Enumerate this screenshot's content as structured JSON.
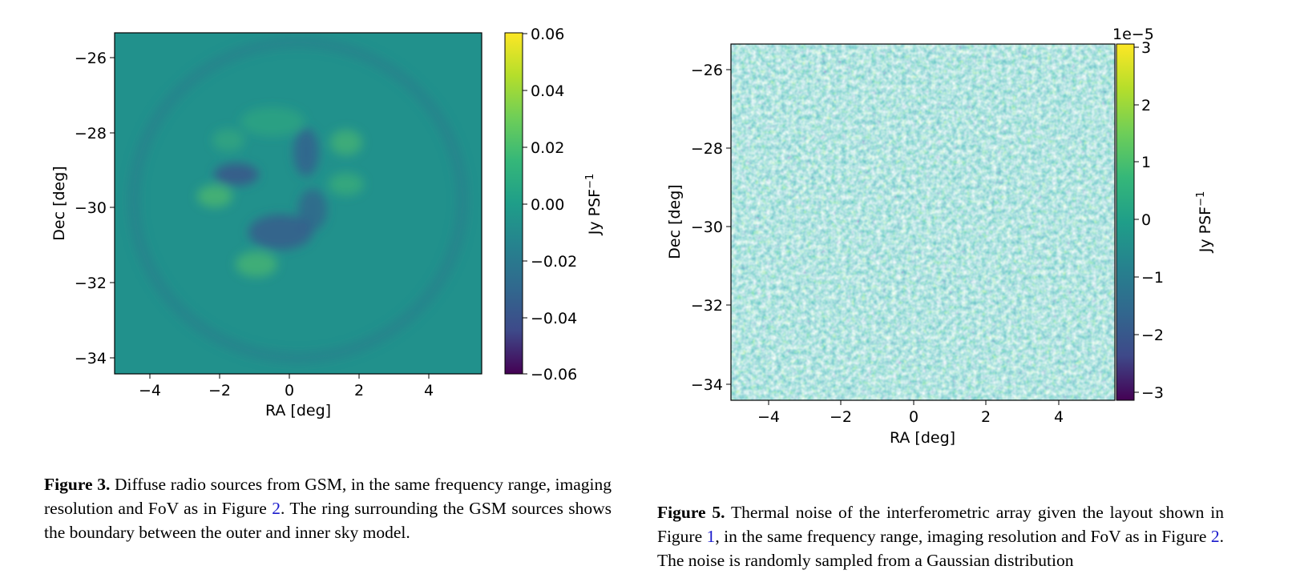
{
  "figures": [
    {
      "id": "fig3",
      "xlabel": "RA [deg]",
      "ylabel": "Dec [deg]",
      "cbar_label": "Jy PSF",
      "cbar_label_exp": "−1",
      "cbar_offset": "",
      "xticks": [
        "−4",
        "−2",
        "0",
        "2",
        "4"
      ],
      "yticks": [
        "−26",
        "−28",
        "−30",
        "−32",
        "−34"
      ],
      "cbar_ticks": [
        "0.06",
        "0.04",
        "0.02",
        "0.00",
        "−0.02",
        "−0.04",
        "−0.06"
      ]
    },
    {
      "id": "fig5",
      "xlabel": "RA [deg]",
      "ylabel": "Dec [deg]",
      "cbar_label": "Jy PSF",
      "cbar_label_exp": "−1",
      "cbar_offset": "1e−5",
      "xticks": [
        "−4",
        "−2",
        "0",
        "2",
        "4"
      ],
      "yticks": [
        "−26",
        "−28",
        "−30",
        "−32",
        "−34"
      ],
      "cbar_ticks": [
        "3",
        "2",
        "1",
        "0",
        "−1",
        "−2",
        "−3"
      ]
    }
  ],
  "captions": {
    "fig3": {
      "label": "Figure 3.",
      "t1": " Diffuse radio sources from GSM, in the same frequency range, imaging resolution and FoV as in Figure ",
      "ref1": "2",
      "t2": ". The ring surrounding the GSM sources shows the boundary between the outer and inner sky model."
    },
    "fig5": {
      "label": "Figure 5.",
      "t1": " Thermal noise of the interferometric array given the layout shown in Figure ",
      "ref1": "1",
      "t2": ", in the same frequency range, imaging resolution and FoV as in Figure ",
      "ref2": "2",
      "t3": ". The noise is randomly sampled from a Gaussian distribution"
    }
  },
  "colors": {
    "viridis_top": "#fde725",
    "viridis_mid": "#21918c",
    "viridis_bottom": "#440154",
    "link": "#1a1acc"
  }
}
